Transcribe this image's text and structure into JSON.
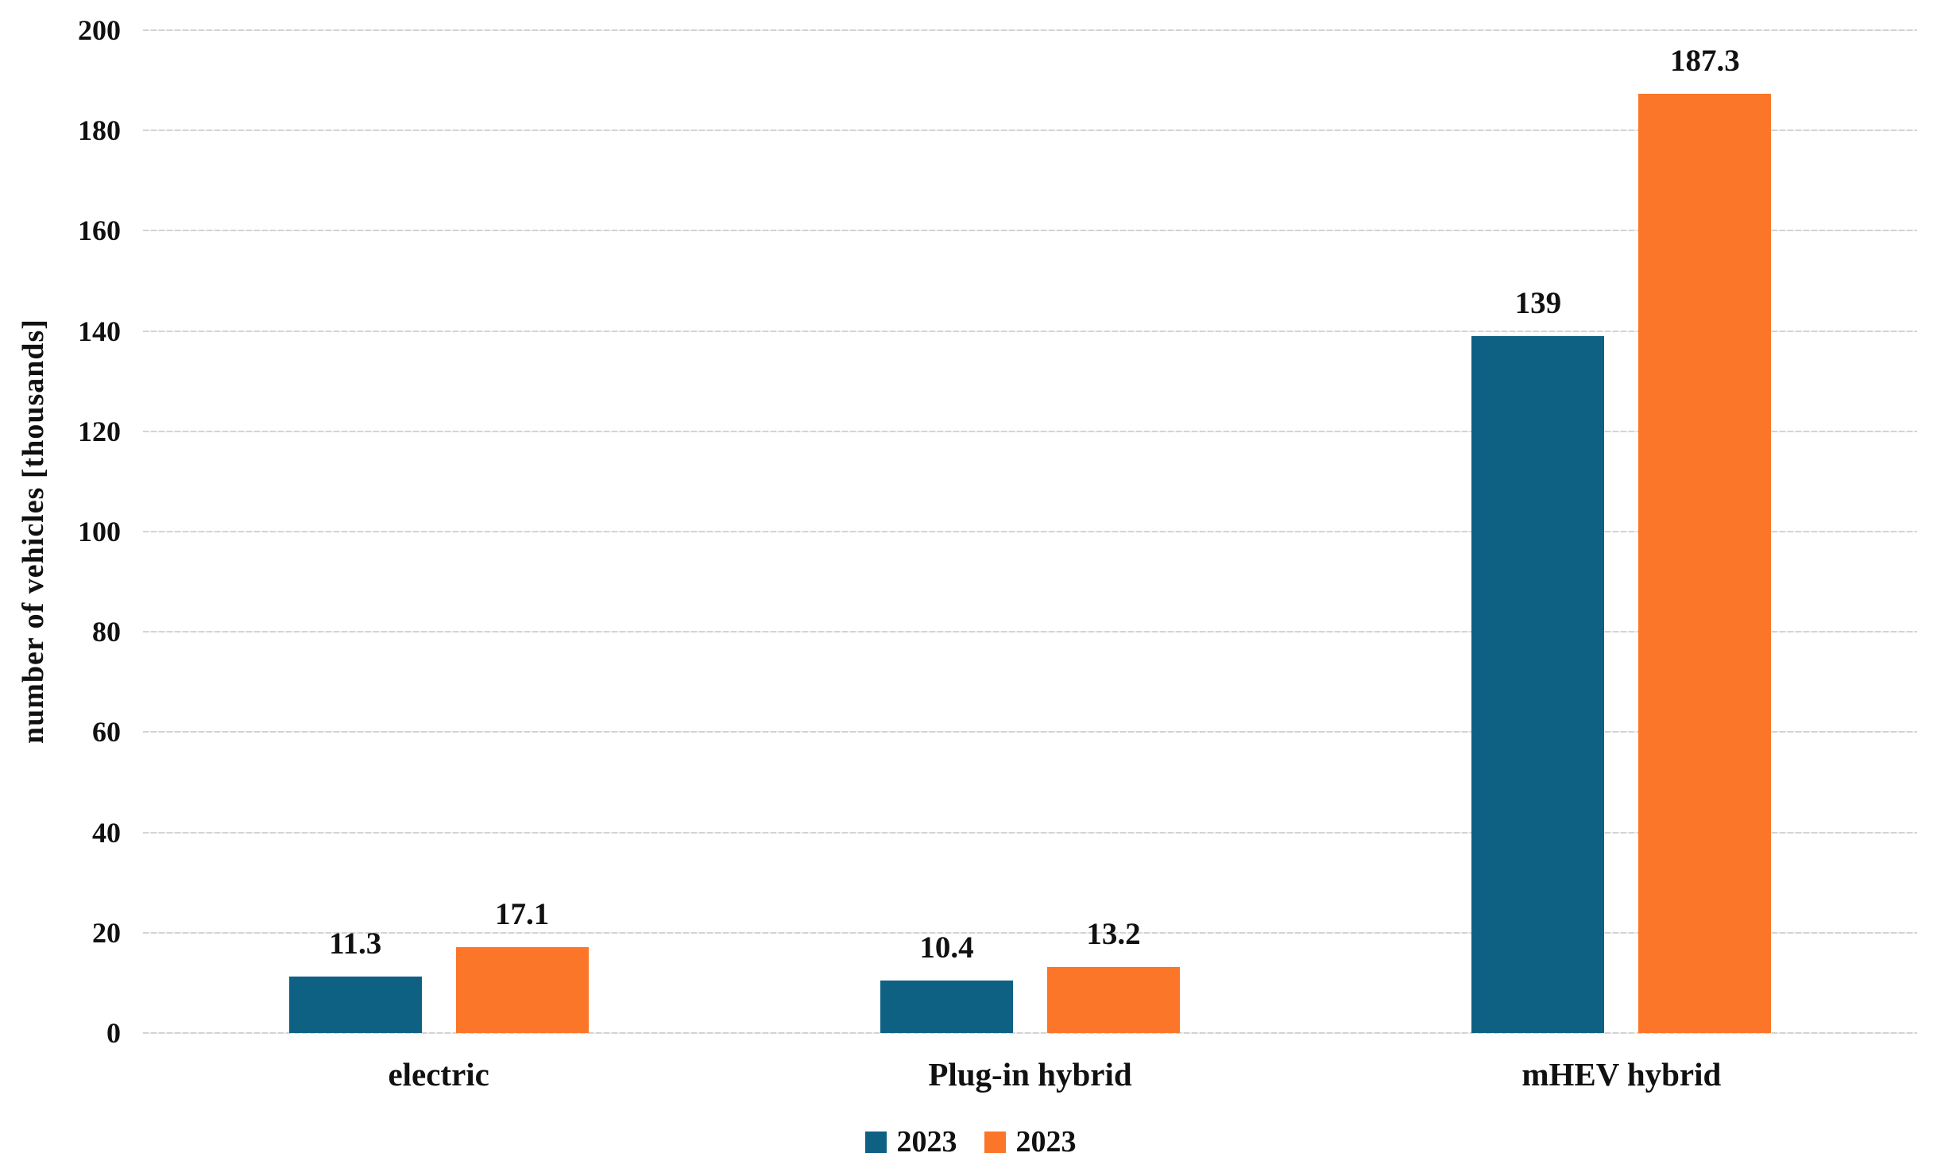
{
  "chart_data": {
    "type": "bar",
    "title": "",
    "xlabel": "",
    "ylabel": "number of vehicles [thousands]",
    "ylim": [
      0,
      200
    ],
    "ytick_step": 20,
    "yticks": [
      0,
      20,
      40,
      60,
      80,
      100,
      120,
      140,
      160,
      180,
      200
    ],
    "categories": [
      "electric",
      "Plug-in hybrid",
      "mHEV hybrid"
    ],
    "series": [
      {
        "name": "2023",
        "color": "#0E6183",
        "values": [
          11.3,
          10.4,
          139
        ],
        "labels": [
          "11.3",
          "10.4",
          "139"
        ]
      },
      {
        "name": "2023",
        "color": "#FB7628",
        "values": [
          17.1,
          13.2,
          187.3
        ],
        "labels": [
          "17.1",
          "13.2",
          "187.3"
        ]
      }
    ],
    "legend_position": "bottom",
    "grid": "horizontal-dashed"
  },
  "colors": {
    "series_blue": "#0E6183",
    "series_orange": "#FB7628",
    "gridline": "#D3D3D3",
    "text": "#111111",
    "background": "#FFFFFF"
  }
}
